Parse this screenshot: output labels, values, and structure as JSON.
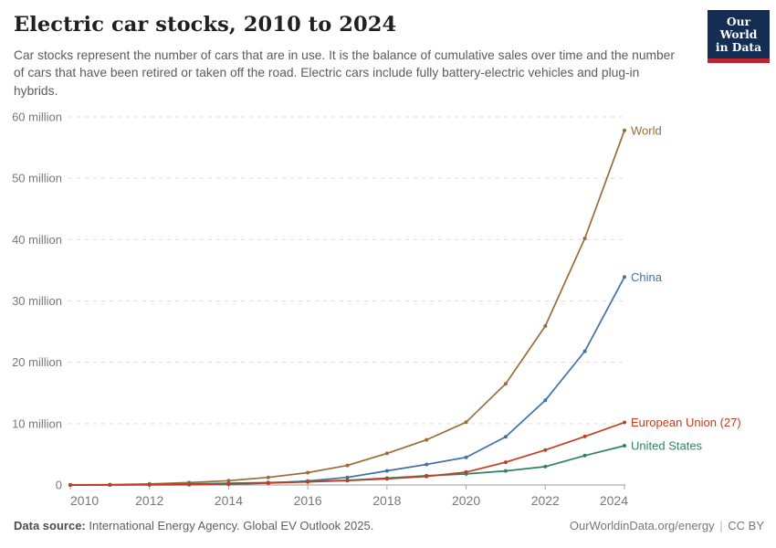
{
  "header": {
    "title": "Electric car stocks, 2010 to 2024",
    "subtitle": "Car stocks represent the number of cars that are in use. It is the balance of cumulative sales over time and the number of cars that have been retired or taken off the road. Electric cars include fully battery-electric vehicles and plug-in hybrids.",
    "logo": {
      "line1": "Our World",
      "line2": "in Data",
      "bg_color": "#132E52",
      "stripe_color": "#BB2430"
    }
  },
  "chart_data": {
    "type": "line",
    "title": "Electric car stocks, 2010 to 2024",
    "x": [
      2010,
      2011,
      2012,
      2013,
      2014,
      2015,
      2016,
      2017,
      2018,
      2019,
      2020,
      2021,
      2022,
      2023,
      2024
    ],
    "xlim": [
      2010,
      2024
    ],
    "ylim": [
      0,
      60
    ],
    "unit": "million",
    "yticks": [
      0,
      10,
      20,
      30,
      40,
      50,
      60
    ],
    "ytick_labels": [
      "0",
      "10 million",
      "20 million",
      "30 million",
      "40 million",
      "50 million",
      "60 million"
    ],
    "xtick_years": [
      2010,
      2012,
      2014,
      2016,
      2018,
      2020,
      2022,
      2024
    ],
    "grid": true,
    "gridline_style": "dashed",
    "legend_position": "labels-at-line-ends-right",
    "series": [
      {
        "name": "World",
        "color": "#996D39",
        "values": [
          0.02,
          0.06,
          0.18,
          0.38,
          0.7,
          1.24,
          2.01,
          3.19,
          5.15,
          7.35,
          10.25,
          16.5,
          25.9,
          40.2,
          57.8
        ]
      },
      {
        "name": "China",
        "color": "#4470A9",
        "values": [
          0.0,
          0.01,
          0.02,
          0.03,
          0.11,
          0.31,
          0.65,
          1.23,
          2.31,
          3.35,
          4.51,
          7.84,
          13.8,
          21.8,
          33.9
        ]
      },
      {
        "name": "European Union (27)",
        "color": "#C43C21",
        "values": [
          0.0,
          0.01,
          0.04,
          0.09,
          0.18,
          0.31,
          0.49,
          0.72,
          1.0,
          1.4,
          2.1,
          3.7,
          5.7,
          7.9,
          10.2
        ]
      },
      {
        "name": "United States",
        "color": "#2C8465",
        "values": [
          0.0,
          0.02,
          0.07,
          0.17,
          0.29,
          0.4,
          0.56,
          0.76,
          1.12,
          1.5,
          1.8,
          2.3,
          3.0,
          4.8,
          6.4
        ]
      }
    ]
  },
  "footer": {
    "source_label": "Data source:",
    "source_text": "International Energy Agency. Global EV Outlook 2025.",
    "url": "OurWorldinData.org/energy",
    "sep": "|",
    "license": "CC BY"
  },
  "colors": {
    "axis_text": "#787878",
    "gridline": "#dddddd",
    "axis_line": "#9a9a9a",
    "tick": "#a8a8a8"
  }
}
